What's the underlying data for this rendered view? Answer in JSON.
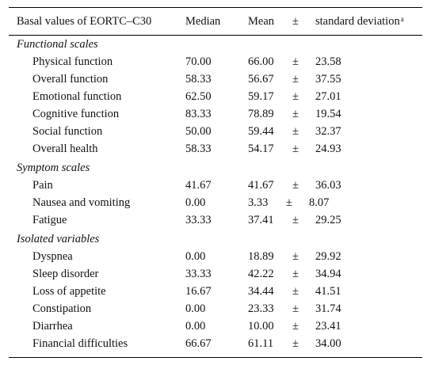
{
  "header": {
    "label": "Basal values of EORTC–C30",
    "median": "Median",
    "mean": "Mean",
    "pm": "±",
    "sd": "standard deviation",
    "sd_sup": "a"
  },
  "sections": [
    {
      "title": "Functional scales",
      "rows": [
        {
          "label": "Physical function",
          "median": "70.00",
          "mean": "66.00",
          "pm": "±",
          "sd": "23.58"
        },
        {
          "label": "Overall function",
          "median": "58.33",
          "mean": "56.67",
          "pm": "±",
          "sd": "37.55"
        },
        {
          "label": "Emotional function",
          "median": "62.50",
          "mean": "59.17",
          "pm": "±",
          "sd": "27.01"
        },
        {
          "label": "Cognitive function",
          "median": "83.33",
          "mean": "78.89",
          "pm": "±",
          "sd": "19.54"
        },
        {
          "label": "Social function",
          "median": "50.00",
          "mean": "59.44",
          "pm": "±",
          "sd": "32.37"
        },
        {
          "label": "Overall health",
          "median": "58.33",
          "mean": "54.17",
          "pm": "±",
          "sd": "24.93"
        }
      ]
    },
    {
      "title": "Symptom scales",
      "rows": [
        {
          "label": "Pain",
          "median": "41.67",
          "mean": "41.67",
          "pm": "±",
          "sd": "36.03"
        },
        {
          "label": "Nausea and vomiting",
          "median": "0.00",
          "mean": "3.33",
          "pm": "±",
          "sd": "8.07"
        },
        {
          "label": "Fatigue",
          "median": "33.33",
          "mean": "37.41",
          "pm": "±",
          "sd": "29.25"
        }
      ]
    },
    {
      "title": "Isolated variables",
      "rows": [
        {
          "label": "Dyspnea",
          "median": "0.00",
          "mean": "18.89",
          "pm": "±",
          "sd": "29.92"
        },
        {
          "label": "Sleep disorder",
          "median": "33.33",
          "mean": "42.22",
          "pm": "±",
          "sd": "34.94"
        },
        {
          "label": "Loss of appetite",
          "median": "16.67",
          "mean": "34.44",
          "pm": "±",
          "sd": "41.51"
        },
        {
          "label": "Constipation",
          "median": "0.00",
          "mean": "23.33",
          "pm": "±",
          "sd": "31.74"
        },
        {
          "label": "Diarrhea",
          "median": "0.00",
          "mean": "10.00",
          "pm": "±",
          "sd": "23.41"
        },
        {
          "label": "Financial difficulties",
          "median": "66.67",
          "mean": "61.11",
          "pm": "±",
          "sd": "34.00"
        }
      ]
    }
  ]
}
